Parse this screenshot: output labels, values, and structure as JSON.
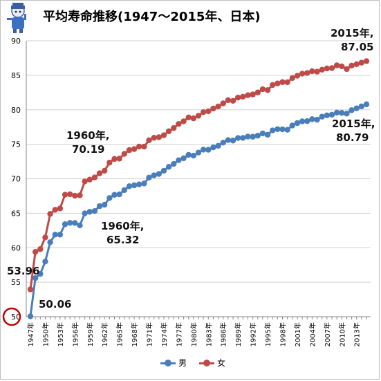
{
  "chart_data": {
    "type": "line",
    "title": "平均寿命推移(1947〜2015年、日本)",
    "xlabel": "",
    "ylabel": "",
    "ylim": [
      50,
      90
    ],
    "y_ticks": [
      "50",
      "55",
      "60",
      "65",
      "70",
      "75",
      "80",
      "85",
      "90"
    ],
    "x": [
      1947,
      1948,
      1949,
      1950,
      1951,
      1952,
      1953,
      1954,
      1955,
      1956,
      1957,
      1958,
      1959,
      1960,
      1961,
      1962,
      1963,
      1964,
      1965,
      1966,
      1967,
      1968,
      1969,
      1970,
      1971,
      1972,
      1973,
      1974,
      1975,
      1976,
      1977,
      1978,
      1979,
      1980,
      1981,
      1982,
      1983,
      1984,
      1985,
      1986,
      1987,
      1988,
      1989,
      1990,
      1991,
      1992,
      1993,
      1994,
      1995,
      1996,
      1997,
      1998,
      1999,
      2000,
      2001,
      2002,
      2003,
      2004,
      2005,
      2006,
      2007,
      2008,
      2009,
      2010,
      2011,
      2012,
      2013,
      2014,
      2015
    ],
    "x_tick_labels": [
      "1947年",
      "1950年",
      "1953年",
      "1956年",
      "1959年",
      "1962年",
      "1965年",
      "1968年",
      "1971年",
      "1974年",
      "1977年",
      "1980年",
      "1983年",
      "1986年",
      "1989年",
      "1992年",
      "1995年",
      "1998年",
      "2001年",
      "2004年",
      "2007年",
      "2010年",
      "2013年"
    ],
    "series": [
      {
        "name": "男",
        "color": "#4a7ebb",
        "values": [
          50.06,
          55.6,
          56.2,
          58.0,
          60.8,
          61.9,
          61.9,
          63.41,
          63.6,
          63.59,
          63.24,
          64.98,
          65.21,
          65.32,
          66.03,
          66.23,
          67.21,
          67.67,
          67.74,
          68.35,
          68.91,
          69.05,
          69.18,
          69.31,
          70.17,
          70.5,
          70.7,
          71.16,
          71.73,
          72.15,
          72.69,
          72.97,
          73.46,
          73.35,
          73.79,
          74.22,
          74.2,
          74.54,
          74.78,
          75.23,
          75.61,
          75.54,
          75.91,
          75.92,
          76.11,
          76.09,
          76.25,
          76.57,
          76.38,
          77.01,
          77.19,
          77.16,
          77.1,
          77.72,
          78.07,
          78.32,
          78.36,
          78.64,
          78.56,
          79.0,
          79.19,
          79.29,
          79.59,
          79.55,
          79.44,
          79.94,
          80.21,
          80.5,
          80.79
        ]
      },
      {
        "name": "女",
        "color": "#be4b48",
        "values": [
          53.96,
          59.4,
          59.8,
          61.5,
          64.9,
          65.5,
          65.7,
          67.69,
          67.75,
          67.54,
          67.6,
          69.61,
          69.88,
          70.19,
          70.79,
          71.16,
          72.34,
          72.87,
          72.92,
          73.61,
          74.15,
          74.3,
          74.67,
          74.66,
          75.58,
          75.94,
          76.02,
          76.31,
          76.89,
          77.35,
          77.95,
          78.33,
          78.89,
          78.76,
          79.13,
          79.66,
          79.78,
          80.18,
          80.48,
          80.93,
          81.39,
          81.3,
          81.77,
          81.9,
          82.11,
          82.22,
          82.51,
          82.98,
          82.85,
          83.59,
          83.82,
          84.01,
          83.99,
          84.6,
          84.93,
          85.23,
          85.33,
          85.59,
          85.52,
          85.81,
          85.99,
          86.05,
          86.44,
          86.3,
          85.9,
          86.41,
          86.61,
          86.83,
          87.05
        ]
      }
    ],
    "legend_position": "bottom",
    "grid": true,
    "annotations": [
      {
        "text": "2015年,",
        "line2": "87.05"
      },
      {
        "text": "1960年,",
        "line2": "70.19"
      },
      {
        "text": "2015年,",
        "line2": "80.79"
      },
      {
        "text": "1960年,",
        "line2": "65.32"
      },
      {
        "text": "53.96",
        "line2": ""
      },
      {
        "text": "50.06",
        "line2": ""
      }
    ]
  }
}
